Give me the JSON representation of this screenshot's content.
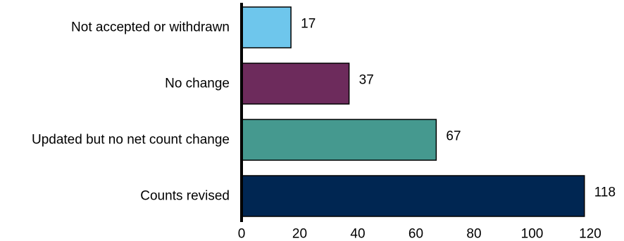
{
  "chart_data": {
    "type": "bar",
    "orientation": "horizontal",
    "categories": [
      "Not accepted or withdrawn",
      "No change",
      "Updated but no net count change",
      "Counts revised"
    ],
    "values": [
      17,
      37,
      67,
      118
    ],
    "colors": [
      "#6ec6ec",
      "#6d2b5c",
      "#45998f",
      "#002652"
    ],
    "xlim": [
      0,
      120
    ],
    "xticks": [
      "0",
      "20",
      "40",
      "60",
      "80",
      "100",
      "120"
    ],
    "grid": false,
    "legend": "none"
  }
}
